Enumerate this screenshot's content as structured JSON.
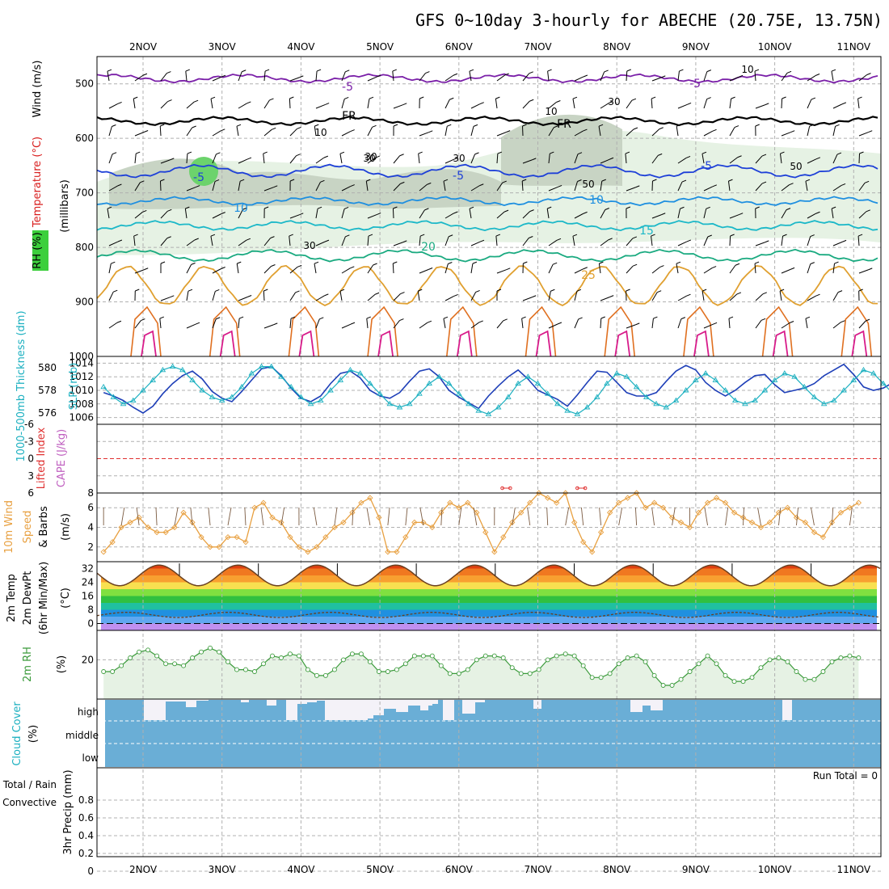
{
  "title": "GFS 0~10day 3-hourly for ABECHE (20.75E, 13.75N)",
  "chart_data": [
    {
      "type": "line",
      "panel": "upper-air",
      "x_labels": [
        "2NOV",
        "3NOV",
        "4NOV",
        "5NOV",
        "6NOV",
        "7NOV",
        "8NOV",
        "9NOV",
        "10NOV",
        "11NOV"
      ],
      "y_ticks": [
        "500",
        "600",
        "700",
        "800",
        "900",
        "1000"
      ],
      "ylim": [
        450,
        1000
      ],
      "y_axis_title": "(millibars)",
      "side_labels": {
        "rh": "RH (%)",
        "temp": "Temperature (°C)",
        "wind": "Wind (m/s)"
      },
      "temperature_labels": [
        "-5",
        "-5",
        "FR",
        "FR",
        "-5",
        "-5",
        "-5",
        "10",
        "10",
        "15",
        "20",
        "25"
      ],
      "rh_labels": [
        "10",
        "10",
        "10",
        "30",
        "30",
        "50",
        "50",
        "30",
        "30",
        "30"
      ],
      "series": [
        {
          "label": "-5",
          "color": "#7a1fa8",
          "base": 490,
          "amp": 6
        },
        {
          "label": "FR",
          "color": "#000000",
          "base": 568,
          "amp": 6
        },
        {
          "label": "-5",
          "color": "#1e40d8",
          "base": 660,
          "amp": 10
        },
        {
          "label": "10",
          "color": "#1e8fe0",
          "base": 715,
          "amp": 6
        },
        {
          "label": "15",
          "color": "#1cb8c8",
          "base": 760,
          "amp": 7
        },
        {
          "label": "20",
          "color": "#1aaa80",
          "base": 815,
          "amp": 9
        },
        {
          "label": "25",
          "color": "#e0a030",
          "base": 870,
          "amp": 35
        }
      ]
    },
    {
      "type": "line",
      "panel": "thickness-slp",
      "y_left_ticks": [
        "580",
        "578",
        "576"
      ],
      "y_right_ticks": [
        "1014",
        "1012",
        "1010",
        "1008",
        "1006"
      ],
      "left_label": "1000-500mb Thickness (dm)",
      "right_label": "SLP (mb)",
      "thickness": [
        577.8,
        577.5,
        577.1,
        576.5,
        576.0,
        576.6,
        577.7,
        578.6,
        579.3,
        579.7,
        579.0,
        577.9,
        577.3,
        577.0,
        577.9,
        578.9,
        579.9,
        580.1,
        579.3,
        578.2,
        577.3,
        577.0,
        577.5,
        578.6,
        579.5,
        579.7,
        579.1,
        578.0,
        577.5,
        577.3,
        577.8,
        578.8,
        579.7,
        579.9,
        579.2,
        578.0,
        577.4,
        576.9,
        576.4,
        577.5,
        578.4,
        579.2,
        579.8,
        579.0,
        578.0,
        577.6,
        577.2,
        576.6,
        577.6,
        578.7,
        579.7,
        579.6,
        578.7,
        577.8,
        577.5,
        577.5,
        577.8,
        578.8,
        579.7,
        580.2,
        579.8,
        578.7,
        578.0,
        577.5,
        578.0,
        578.7,
        579.3,
        579.4,
        578.5,
        577.8,
        578.0,
        578.2,
        578.6,
        579.3,
        579.8,
        580.3,
        579.4,
        578.3,
        578.0,
        578.2,
        578.7,
        579.2,
        579.8,
        580.0,
        579.0,
        578.4
      ],
      "slp": [
        1010.5,
        1009.0,
        1008.0,
        1008.5,
        1010.0,
        1011.5,
        1013.0,
        1013.5,
        1013.0,
        1011.5,
        1010.0,
        1009.0,
        1008.5,
        1009.0,
        1010.5,
        1012.5,
        1013.5,
        1013.5,
        1012.0,
        1010.5,
        1009.0,
        1008.0,
        1008.5,
        1010.0,
        1011.5,
        1013.0,
        1012.5,
        1011.0,
        1009.5,
        1008.0,
        1007.5,
        1008.0,
        1009.5,
        1011.0,
        1012.0,
        1011.0,
        1009.5,
        1008.0,
        1007.0,
        1006.5,
        1007.5,
        1009.0,
        1011.0,
        1012.0,
        1011.0,
        1009.5,
        1008.0,
        1007.0,
        1006.5,
        1007.5,
        1009.0,
        1011.0,
        1012.5,
        1012.0,
        1010.5,
        1009.0,
        1008.0,
        1007.5,
        1008.5,
        1010.0,
        1011.5,
        1012.5,
        1011.5,
        1010.0,
        1008.5,
        1008.0,
        1008.5,
        1010.0,
        1011.5,
        1012.5,
        1012.0,
        1010.5,
        1009.0,
        1008.0,
        1008.5,
        1010.0,
        1011.5,
        1013.0,
        1012.5,
        1011.0,
        1009.5,
        1008.5,
        1008.5,
        1009.5,
        1008.0,
        1008.5
      ]
    },
    {
      "type": "line",
      "panel": "stability",
      "left_label": "Lifted Index",
      "right_label": "CAPE (J/kg)",
      "y_left_ticks": [
        "-6",
        "-3",
        "0",
        "3",
        "6"
      ],
      "y_right_ticks": [
        "8"
      ],
      "lifted_index": 0,
      "cape_points": [
        {
          "t": 5.55,
          "v": 8
        },
        {
          "t": 5.65,
          "v": 8
        },
        {
          "t": 6.5,
          "v": 8
        },
        {
          "t": 6.6,
          "v": 8
        }
      ]
    },
    {
      "type": "line",
      "panel": "wind10m",
      "label": "10m Wind Speed & Barbs",
      "unit": "(m/s)",
      "y_ticks": [
        "6",
        "4",
        "2"
      ],
      "ylim": [
        0.5,
        7.5
      ],
      "speed": [
        1.5,
        2.5,
        4.0,
        4.5,
        5.0,
        4.0,
        3.5,
        3.5,
        4.0,
        5.5,
        4.5,
        3.0,
        2.0,
        2.0,
        3.0,
        3.0,
        2.5,
        6.0,
        6.5,
        5.0,
        4.5,
        3.0,
        2.0,
        1.5,
        2.0,
        3.0,
        4.0,
        4.5,
        5.5,
        6.5,
        7.0,
        5.0,
        1.5,
        1.5,
        3.0,
        4.5,
        4.5,
        4.0,
        5.5,
        6.5,
        6.0,
        6.5,
        5.5,
        3.5,
        1.5,
        3.0,
        4.5,
        5.5,
        6.5,
        7.5,
        7.0,
        6.5,
        7.5,
        4.5,
        2.5,
        1.5,
        3.5,
        5.5,
        6.5,
        7.0,
        7.5,
        6.0,
        6.5,
        6.0,
        5.0,
        4.5,
        4.0,
        5.5,
        6.5,
        7.0,
        6.5,
        5.5,
        5.0,
        4.5,
        4.0,
        4.5,
        5.5,
        6.0,
        5.0,
        4.5,
        3.5,
        3.0,
        4.5,
        5.5,
        6.0,
        6.5
      ]
    },
    {
      "type": "area",
      "panel": "temperature2m",
      "label": "2m Temp",
      "label2": "2m DewPt",
      "label3": "(6hr Min/Max)",
      "unit": "(°C)",
      "y_ticks": [
        "32",
        "24",
        "16",
        "8",
        "0"
      ],
      "ylim": [
        -4,
        36
      ],
      "days": 10,
      "tmin": 22,
      "tmax": 34,
      "dewpt": 5
    },
    {
      "type": "area",
      "panel": "rh2m",
      "label": "2m RH",
      "unit": "(%)",
      "y_ticks": [
        "20"
      ],
      "ylim": [
        0,
        35
      ],
      "rh": [
        14,
        14,
        17,
        21,
        24,
        25,
        22,
        18,
        18,
        17,
        21,
        24,
        26,
        24,
        19,
        15,
        15,
        14,
        18,
        22,
        21,
        23,
        22,
        15,
        12,
        12,
        15,
        20,
        23,
        23,
        19,
        14,
        14,
        15,
        18,
        22,
        22,
        22,
        17,
        13,
        13,
        15,
        20,
        22,
        22,
        21,
        16,
        13,
        13,
        15,
        20,
        22,
        23,
        22,
        17,
        11,
        11,
        13,
        18,
        21,
        22,
        19,
        12,
        7,
        7,
        10,
        14,
        18,
        22,
        18,
        12,
        9,
        9,
        11,
        16,
        20,
        21,
        19,
        14,
        10,
        10,
        14,
        19,
        21,
        22,
        21
      ]
    },
    {
      "type": "bar",
      "panel": "cloud",
      "label": "Cloud Cover",
      "unit": "(%)",
      "y_ticks": [
        "high",
        "middle",
        "low"
      ],
      "gaps": [
        [
          178,
          205,
          0
        ],
        [
          205,
          230,
          23
        ],
        [
          230,
          243,
          16
        ],
        [
          243,
          258,
          24
        ],
        [
          298,
          308,
          22
        ],
        [
          330,
          342,
          18
        ],
        [
          354,
          368,
          0
        ],
        [
          368,
          380,
          20
        ],
        [
          380,
          392,
          22
        ],
        [
          392,
          402,
          24
        ],
        [
          402,
          412,
          0
        ],
        [
          412,
          455,
          0
        ],
        [
          455,
          462,
          2
        ],
        [
          462,
          475,
          6
        ],
        [
          475,
          490,
          14
        ],
        [
          490,
          505,
          10
        ],
        [
          505,
          520,
          18
        ],
        [
          520,
          530,
          12
        ],
        [
          530,
          535,
          18
        ],
        [
          535,
          542,
          20
        ],
        [
          548,
          562,
          0
        ],
        [
          572,
          588,
          8
        ],
        [
          588,
          600,
          22
        ],
        [
          660,
          670,
          14
        ],
        [
          780,
          795,
          10
        ],
        [
          795,
          805,
          18
        ],
        [
          805,
          820,
          12
        ],
        [
          968,
          980,
          0
        ]
      ]
    },
    {
      "type": "bar",
      "panel": "precip",
      "label": "3hr Precip (mm)",
      "side_label": "Total / Rain",
      "side_label2": "Convective",
      "y_ticks": [
        "0.8",
        "0.6",
        "0.4",
        "0.2",
        "0"
      ],
      "ylim": [
        0,
        1.0
      ],
      "run_total": "Run Total = 0",
      "values": []
    }
  ]
}
